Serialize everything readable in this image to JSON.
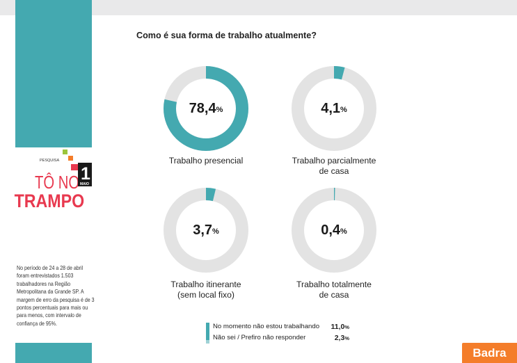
{
  "question": "Como é sua forma de trabalho atualmente?",
  "logo": {
    "pesquisa": "PESQUISA",
    "line1": "TÔ NO",
    "line2": "TRAMPO",
    "day": "1",
    "month": "MAIO"
  },
  "note": "No período de 24 a 28 de abril foram entrevistados 1.503 trabalhadores na Região Metropolitana da Grande SP. A margem de erro da pesquisa é de 3 pontos percentuais para mais ou para menos, com intervalo de confiança de 95%.",
  "chart_data": {
    "type": "pie",
    "title": "Como é sua forma de trabalho atualmente?",
    "slices": [
      {
        "label": "Trabalho presencial",
        "value": 78.4,
        "display": "78,4"
      },
      {
        "label": "Trabalho parcialmente de casa",
        "label_lines": [
          "Trabalho parcialmente",
          "de casa"
        ],
        "value": 4.1,
        "display": "4,1"
      },
      {
        "label": "Trabalho itinerante (sem local fixo)",
        "label_lines": [
          "Trabalho itinerante",
          "(sem local fixo)"
        ],
        "value": 3.7,
        "display": "3,7"
      },
      {
        "label": "Trabalho totalmente de casa",
        "label_lines": [
          "Trabalho totalmente",
          "de casa"
        ],
        "value": 0.4,
        "display": "0,4"
      }
    ],
    "unit": "%",
    "legend": [
      {
        "label": "No momento não estou trabalhando",
        "value": 11.0,
        "display": "11,0",
        "color": "#44a9b0"
      },
      {
        "label": "Não sei / Prefiro não responder",
        "value": 2.3,
        "display": "2,3",
        "color": "#9fd2d6"
      }
    ],
    "colors": {
      "fill": "#44a9b0",
      "track": "#e3e3e3"
    }
  },
  "brand": "Badra",
  "colors": {
    "teal": "#44a9b0",
    "orange": "#f47d2a",
    "red": "#e8394f",
    "green": "#9bc53d",
    "gray_band": "#e9e9ea"
  }
}
